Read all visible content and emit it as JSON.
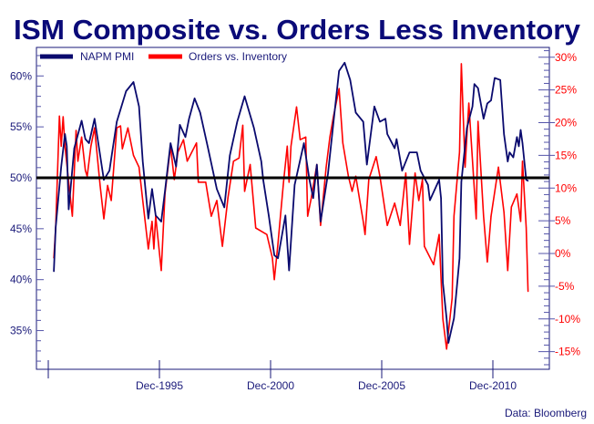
{
  "chart_data": {
    "type": "line",
    "title": "ISM Composite vs. Orders Less Inventory",
    "source": "Data: Bloomberg",
    "legend_position": "top-left",
    "grid": false,
    "reference_line": {
      "axis": "left",
      "value": 50,
      "color": "#000000"
    },
    "x_ticks": [
      {
        "date": "1990-12",
        "label": ""
      },
      {
        "date": "1995-12",
        "label": "Dec-1995"
      },
      {
        "date": "2000-12",
        "label": "Dec-2000"
      },
      {
        "date": "2005-12",
        "label": "Dec-2005"
      },
      {
        "date": "2010-12",
        "label": "Dec-2010"
      }
    ],
    "y_left": {
      "ylim": [
        31.2,
        62.8
      ],
      "ticks": [
        35,
        40,
        45,
        50,
        55,
        60
      ],
      "labels": [
        "35%",
        "40%",
        "45%",
        "50%",
        "55%",
        "60%"
      ],
      "color": "#1a1a7a"
    },
    "y_right": {
      "ylim": [
        -17.7,
        31.5
      ],
      "ticks": [
        -15,
        -10,
        -5,
        0,
        5,
        10,
        15,
        20,
        25,
        30
      ],
      "labels": [
        "-15%",
        "-10%",
        "-5%",
        "0%",
        "5%",
        "10%",
        "15%",
        "20%",
        "25%",
        "30%"
      ],
      "color": "#ff0000"
    },
    "series": [
      {
        "name": "NAPM PMI",
        "axis": "left",
        "color": "#0a0a6e",
        "points": [
          [
            "1991-03",
            40.8
          ],
          [
            "1991-04",
            45.1
          ],
          [
            "1991-07",
            51.1
          ],
          [
            "1991-09",
            54.3
          ],
          [
            "1991-10",
            53.1
          ],
          [
            "1991-11",
            46.9
          ],
          [
            "1992-02",
            52.9
          ],
          [
            "1992-06",
            55.6
          ],
          [
            "1992-08",
            53.8
          ],
          [
            "1992-10",
            53.4
          ],
          [
            "1993-01",
            55.8
          ],
          [
            "1993-03",
            53.4
          ],
          [
            "1993-06",
            49.8
          ],
          [
            "1993-09",
            50.7
          ],
          [
            "1994-01",
            55.5
          ],
          [
            "1994-06",
            58.5
          ],
          [
            "1994-10",
            59.4
          ],
          [
            "1995-01",
            57.0
          ],
          [
            "1995-03",
            51.6
          ],
          [
            "1995-06",
            46.0
          ],
          [
            "1995-08",
            48.9
          ],
          [
            "1995-10",
            46.3
          ],
          [
            "1996-01",
            45.7
          ],
          [
            "1996-03",
            48.7
          ],
          [
            "1996-06",
            53.4
          ],
          [
            "1996-09",
            51.1
          ],
          [
            "1996-11",
            55.2
          ],
          [
            "1997-02",
            54.0
          ],
          [
            "1997-04",
            55.8
          ],
          [
            "1997-07",
            57.8
          ],
          [
            "1997-10",
            56.4
          ],
          [
            "1998-02",
            53.1
          ],
          [
            "1998-07",
            48.9
          ],
          [
            "1998-11",
            47.1
          ],
          [
            "1999-02",
            52.2
          ],
          [
            "1999-06",
            55.5
          ],
          [
            "1999-10",
            58.0
          ],
          [
            "2000-03",
            54.9
          ],
          [
            "2000-07",
            51.6
          ],
          [
            "2000-08",
            49.8
          ],
          [
            "2000-11",
            46.3
          ],
          [
            "2001-02",
            42.4
          ],
          [
            "2001-04",
            42.1
          ],
          [
            "2001-08",
            46.3
          ],
          [
            "2001-10",
            40.9
          ],
          [
            "2002-01",
            49.3
          ],
          [
            "2002-06",
            53.4
          ],
          [
            "2002-09",
            49.8
          ],
          [
            "2002-11",
            48.0
          ],
          [
            "2003-01",
            51.3
          ],
          [
            "2003-03",
            45.7
          ],
          [
            "2003-07",
            50.4
          ],
          [
            "2003-10",
            55.5
          ],
          [
            "2004-01",
            60.5
          ],
          [
            "2004-04",
            61.3
          ],
          [
            "2004-07",
            59.6
          ],
          [
            "2004-10",
            56.4
          ],
          [
            "2005-02",
            55.5
          ],
          [
            "2005-04",
            51.3
          ],
          [
            "2005-08",
            57.0
          ],
          [
            "2005-11",
            55.5
          ],
          [
            "2006-02",
            55.8
          ],
          [
            "2006-03",
            54.3
          ],
          [
            "2006-07",
            52.9
          ],
          [
            "2006-08",
            53.8
          ],
          [
            "2006-11",
            50.7
          ],
          [
            "2007-03",
            52.5
          ],
          [
            "2007-07",
            52.5
          ],
          [
            "2007-09",
            50.7
          ],
          [
            "2008-01",
            49.3
          ],
          [
            "2008-02",
            47.8
          ],
          [
            "2008-07",
            49.8
          ],
          [
            "2008-08",
            48.0
          ],
          [
            "2008-09",
            39.7
          ],
          [
            "2008-11",
            36.2
          ],
          [
            "2008-12",
            33.8
          ],
          [
            "2009-03",
            36.2
          ],
          [
            "2009-06",
            42.1
          ],
          [
            "2009-07",
            49.6
          ],
          [
            "2009-10",
            54.9
          ],
          [
            "2010-01",
            57.0
          ],
          [
            "2010-02",
            59.2
          ],
          [
            "2010-04",
            58.8
          ],
          [
            "2010-07",
            55.8
          ],
          [
            "2010-09",
            57.3
          ],
          [
            "2010-11",
            57.6
          ],
          [
            "2011-01",
            59.8
          ],
          [
            "2011-04",
            59.6
          ],
          [
            "2011-06",
            54.3
          ],
          [
            "2011-08",
            51.6
          ],
          [
            "2011-09",
            52.5
          ],
          [
            "2011-11",
            52.0
          ],
          [
            "2012-01",
            54.0
          ],
          [
            "2012-02",
            53.1
          ],
          [
            "2012-03",
            54.7
          ],
          [
            "2012-04",
            53.4
          ],
          [
            "2012-06",
            49.8
          ],
          [
            "2012-07",
            49.7
          ]
        ]
      },
      {
        "name": "Orders vs. Inventory",
        "axis": "right",
        "color": "#ff0000",
        "points": [
          [
            "1991-03",
            -0.7
          ],
          [
            "1991-04",
            3.9
          ],
          [
            "1991-06",
            21.0
          ],
          [
            "1991-07",
            16.4
          ],
          [
            "1991-08",
            20.9
          ],
          [
            "1991-09",
            16.4
          ],
          [
            "1991-11",
            10.9
          ],
          [
            "1992-01",
            5.7
          ],
          [
            "1992-03",
            18.8
          ],
          [
            "1992-04",
            14.1
          ],
          [
            "1992-06",
            17.8
          ],
          [
            "1992-08",
            12.7
          ],
          [
            "1992-09",
            11.8
          ],
          [
            "1992-11",
            16.4
          ],
          [
            "1993-01",
            19.2
          ],
          [
            "1993-04",
            10.4
          ],
          [
            "1993-06",
            5.3
          ],
          [
            "1993-08",
            10.4
          ],
          [
            "1993-10",
            8.1
          ],
          [
            "1994-01",
            19.2
          ],
          [
            "1994-03",
            19.5
          ],
          [
            "1994-04",
            16.0
          ],
          [
            "1994-07",
            19.2
          ],
          [
            "1994-10",
            15.0
          ],
          [
            "1995-01",
            13.2
          ],
          [
            "1995-03",
            8.1
          ],
          [
            "1995-06",
            0.7
          ],
          [
            "1995-08",
            4.9
          ],
          [
            "1995-09",
            0.7
          ],
          [
            "1995-10",
            5.7
          ],
          [
            "1996-01",
            -2.6
          ],
          [
            "1996-03",
            9.1
          ],
          [
            "1996-06",
            16.4
          ],
          [
            "1996-08",
            11.3
          ],
          [
            "1996-10",
            15.5
          ],
          [
            "1997-01",
            17.4
          ],
          [
            "1997-03",
            14.1
          ],
          [
            "1997-08",
            16.9
          ],
          [
            "1997-09",
            10.9
          ],
          [
            "1998-01",
            10.9
          ],
          [
            "1998-02",
            9.1
          ],
          [
            "1998-04",
            5.7
          ],
          [
            "1998-07",
            8.1
          ],
          [
            "1998-10",
            1.1
          ],
          [
            "1999-01",
            8.5
          ],
          [
            "1999-04",
            14.1
          ],
          [
            "1999-07",
            14.6
          ],
          [
            "1999-09",
            19.6
          ],
          [
            "1999-10",
            9.5
          ],
          [
            "2000-01",
            13.6
          ],
          [
            "2000-04",
            3.9
          ],
          [
            "2000-10",
            2.9
          ],
          [
            "2001-01",
            -0.7
          ],
          [
            "2001-02",
            -4.0
          ],
          [
            "2001-04",
            1.5
          ],
          [
            "2001-07",
            10.9
          ],
          [
            "2001-09",
            16.4
          ],
          [
            "2001-10",
            10.9
          ],
          [
            "2001-11",
            16.4
          ],
          [
            "2002-02",
            22.4
          ],
          [
            "2002-04",
            17.4
          ],
          [
            "2002-07",
            17.8
          ],
          [
            "2002-08",
            5.7
          ],
          [
            "2002-10",
            8.5
          ],
          [
            "2003-01",
            13.6
          ],
          [
            "2003-03",
            4.3
          ],
          [
            "2003-06",
            13.2
          ],
          [
            "2003-08",
            17.8
          ],
          [
            "2003-10",
            21.0
          ],
          [
            "2004-01",
            25.2
          ],
          [
            "2004-03",
            16.9
          ],
          [
            "2004-06",
            11.8
          ],
          [
            "2004-08",
            9.5
          ],
          [
            "2004-10",
            11.8
          ],
          [
            "2005-02",
            4.9
          ],
          [
            "2005-03",
            2.9
          ],
          [
            "2005-05",
            11.3
          ],
          [
            "2005-09",
            14.8
          ],
          [
            "2005-11",
            11.8
          ],
          [
            "2006-03",
            4.3
          ],
          [
            "2006-07",
            7.7
          ],
          [
            "2006-10",
            4.3
          ],
          [
            "2007-01",
            12.3
          ],
          [
            "2007-03",
            1.4
          ],
          [
            "2007-06",
            12.3
          ],
          [
            "2007-08",
            8.1
          ],
          [
            "2007-10",
            11.3
          ],
          [
            "2007-11",
            1.1
          ],
          [
            "2008-04",
            -1.7
          ],
          [
            "2008-07",
            2.9
          ],
          [
            "2008-09",
            -10.0
          ],
          [
            "2008-11",
            -14.6
          ],
          [
            "2009-02",
            -6.8
          ],
          [
            "2009-03",
            5.7
          ],
          [
            "2009-06",
            15.5
          ],
          [
            "2009-07",
            29.0
          ],
          [
            "2009-09",
            13.2
          ],
          [
            "2009-11",
            23.0
          ],
          [
            "2010-03",
            5.3
          ],
          [
            "2010-04",
            20.2
          ],
          [
            "2010-07",
            5.7
          ],
          [
            "2010-09",
            -1.3
          ],
          [
            "2010-11",
            5.7
          ],
          [
            "2011-03",
            13.2
          ],
          [
            "2011-06",
            6.3
          ],
          [
            "2011-08",
            -2.6
          ],
          [
            "2011-10",
            7.1
          ],
          [
            "2012-01",
            9.1
          ],
          [
            "2012-03",
            4.9
          ],
          [
            "2012-04",
            14.1
          ],
          [
            "2012-06",
            3.9
          ],
          [
            "2012-07",
            -5.8
          ]
        ]
      }
    ]
  }
}
